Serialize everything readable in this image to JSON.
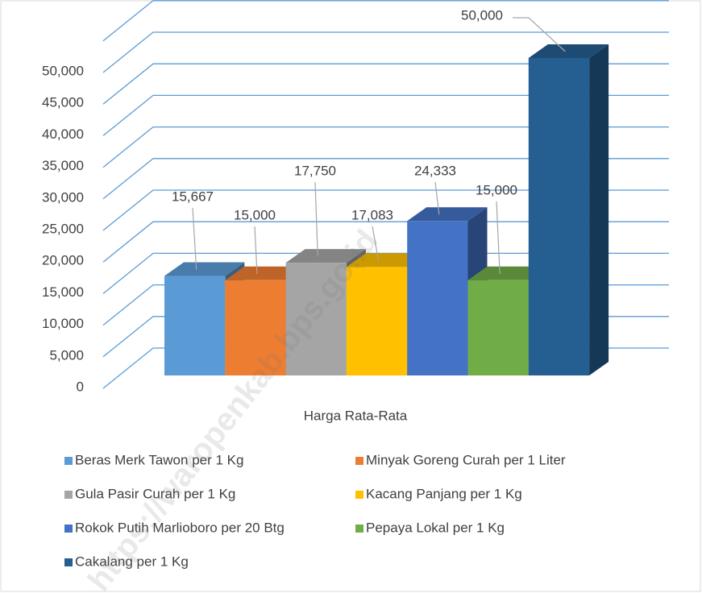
{
  "chart_data": {
    "type": "bar3d",
    "categories": [
      "Harga Rata-Rata"
    ],
    "series": [
      {
        "name": "Beras Merk Tawon per 1 Kg",
        "color": "#5b9bd5",
        "values": [
          15667
        ],
        "value_labels": [
          "15,667"
        ]
      },
      {
        "name": "Minyak Goreng Curah per 1 Liter",
        "color": "#ed7d31",
        "values": [
          15000
        ],
        "value_labels": [
          "15,000"
        ]
      },
      {
        "name": "Gula Pasir Curah per 1 Kg",
        "color": "#a5a5a5",
        "values": [
          17750
        ],
        "value_labels": [
          "17,750"
        ]
      },
      {
        "name": "Kacang Panjang per 1 Kg",
        "color": "#ffc000",
        "values": [
          17083
        ],
        "value_labels": [
          "17,083"
        ]
      },
      {
        "name": "Rokok Putih Marlioboro per 20 Btg",
        "color": "#4472c4",
        "values": [
          24333
        ],
        "value_labels": [
          "24,333"
        ]
      },
      {
        "name": "Pepaya Lokal per 1 Kg",
        "color": "#70ad47",
        "values": [
          15000
        ],
        "value_labels": [
          "15,000"
        ]
      },
      {
        "name": "Cakalang per 1 Kg",
        "color": "#255e91",
        "values": [
          50000
        ],
        "value_labels": [
          "50,000"
        ]
      }
    ],
    "ylim": [
      0,
      50000
    ],
    "yticks": [
      0,
      {
        "value": 5000,
        "label": "5,000"
      },
      {
        "value": 10000,
        "label": "10,000"
      },
      {
        "value": 15000,
        "label": "15,000"
      },
      {
        "value": 20000,
        "label": "20,000"
      },
      {
        "value": 25000,
        "label": "25,000"
      },
      {
        "value": 30000,
        "label": "30,000"
      },
      {
        "value": 35000,
        "label": "35,000"
      },
      {
        "value": 40000,
        "label": "40,000"
      },
      {
        "value": 45000,
        "label": "45,000"
      },
      {
        "value": 50000,
        "label": "50,000"
      }
    ],
    "grid": true,
    "legend": "bottom",
    "watermark": "https://waropenkab.bps.go.id"
  }
}
